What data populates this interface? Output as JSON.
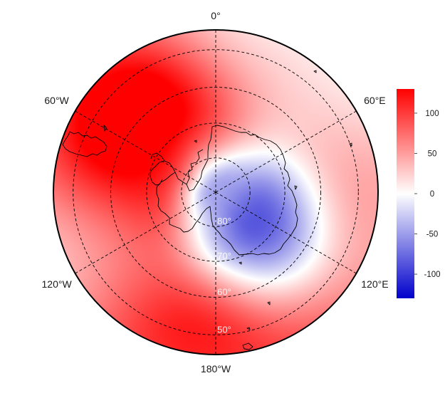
{
  "map": {
    "projection": "south-polar-stereographic",
    "boundary_latitude": -45,
    "meridian_labels": [
      {
        "id": "lon-0",
        "text": "0°",
        "lon": 0
      },
      {
        "id": "lon-60w",
        "text": "60°W",
        "lon": -60
      },
      {
        "id": "lon-60e",
        "text": "60°E",
        "lon": 60
      },
      {
        "id": "lon-120w",
        "text": "120°W",
        "lon": -120
      },
      {
        "id": "lon-120e",
        "text": "120°E",
        "lon": 120
      },
      {
        "id": "lon-180w",
        "text": "180°W",
        "lon": 180
      }
    ],
    "parallel_labels": [
      {
        "id": "lat-80",
        "text": "80°",
        "lat": -80
      },
      {
        "id": "lat-70",
        "text": "70°",
        "lat": -70
      },
      {
        "id": "lat-60",
        "text": "60°",
        "lat": -60
      },
      {
        "id": "lat-50",
        "text": "50°",
        "lat": -50
      }
    ],
    "gridline_style": "dashed",
    "coastlines": "Antarctica, Antarctic Peninsula, southern South America"
  },
  "field": {
    "description_pattern": "positive anomaly over Pacific/Atlantic sector around 60-120°W and near 0°/30°E, strong negative anomaly over East Antarctica 90-150°E",
    "anomaly_centers": [
      {
        "lat": -58,
        "lon": -40,
        "amp": 130,
        "spread": 18
      },
      {
        "lat": -52,
        "lon": -80,
        "amp": 80,
        "spread": 18
      },
      {
        "lat": -48,
        "lon": 150,
        "amp": 110,
        "spread": 22
      },
      {
        "lat": -48,
        "lon": -150,
        "amp": 95,
        "spread": 20
      },
      {
        "lat": -52,
        "lon": 90,
        "amp": 45,
        "spread": 16
      },
      {
        "lat": -58,
        "lon": 30,
        "amp": 20,
        "spread": 12
      },
      {
        "lat": -72,
        "lon": 120,
        "amp": -125,
        "spread": 16
      },
      {
        "lat": -64,
        "lon": 150,
        "amp": -60,
        "spread": 14
      },
      {
        "lat": -62,
        "lon": -115,
        "amp": -50,
        "spread": 20
      },
      {
        "lat": -76,
        "lon": 35,
        "amp": -30,
        "spread": 12
      }
    ]
  },
  "colorbar": {
    "min": -130,
    "max": 130,
    "ticks": [
      {
        "value": 100,
        "text": "100"
      },
      {
        "value": 50,
        "text": "50"
      },
      {
        "value": 0,
        "text": "0"
      },
      {
        "value": -50,
        "text": "-50"
      },
      {
        "value": -100,
        "text": "-100"
      }
    ],
    "colors": {
      "low": "#0000cc",
      "mid": "#ffffff",
      "high": "#ff0000"
    }
  }
}
